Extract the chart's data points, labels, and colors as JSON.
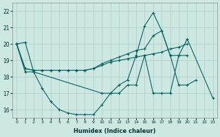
{
  "xlabel": "Humidex (Indice chaleur)",
  "background_color": "#cce8e0",
  "grid_color": "#aacccc",
  "line_color": "#006060",
  "xlim": [
    -0.5,
    23.5
  ],
  "ylim": [
    15.5,
    22.5
  ],
  "yticks": [
    16,
    17,
    18,
    19,
    20,
    21,
    22
  ],
  "xticks": [
    0,
    1,
    2,
    3,
    4,
    5,
    6,
    7,
    8,
    9,
    10,
    11,
    12,
    13,
    14,
    15,
    16,
    17,
    18,
    19,
    20,
    21,
    22,
    23
  ],
  "series": [
    {
      "x": [
        0,
        1,
        2,
        3,
        4,
        5,
        6,
        7,
        8,
        9,
        10,
        11,
        12,
        13,
        14,
        15,
        16,
        17,
        18,
        19,
        20,
        21
      ],
      "y": [
        20.0,
        20.1,
        18.3,
        17.3,
        16.5,
        16.0,
        15.8,
        15.7,
        15.7,
        15.7,
        16.3,
        17.0,
        17.5,
        17.8,
        19.3,
        21.1,
        21.9,
        20.8,
        19.3,
        17.5,
        17.5,
        17.8
      ]
    },
    {
      "x": [
        0,
        1,
        2,
        10,
        11,
        12,
        13,
        14,
        15,
        16,
        17,
        18,
        19,
        20,
        23
      ],
      "y": [
        20.0,
        18.3,
        18.3,
        17.0,
        17.0,
        17.0,
        17.5,
        17.5,
        19.3,
        17.0,
        17.0,
        17.0,
        19.3,
        20.3,
        16.7
      ]
    },
    {
      "x": [
        0,
        1,
        2,
        3,
        4,
        5,
        6,
        7,
        8,
        9,
        10,
        11,
        12,
        13,
        14,
        15,
        16,
        17,
        18,
        19,
        20
      ],
      "y": [
        20.0,
        18.5,
        18.4,
        18.4,
        18.4,
        18.4,
        18.4,
        18.4,
        18.4,
        18.5,
        18.8,
        19.0,
        19.2,
        19.4,
        19.6,
        19.7,
        20.5,
        20.8,
        19.3,
        19.3,
        19.3
      ]
    },
    {
      "x": [
        0,
        1,
        2,
        3,
        4,
        5,
        6,
        7,
        8,
        9,
        10,
        11,
        12,
        13,
        14,
        15,
        16,
        17,
        18,
        19,
        20
      ],
      "y": [
        20.0,
        18.5,
        18.4,
        18.4,
        18.4,
        18.4,
        18.4,
        18.4,
        18.4,
        18.5,
        18.7,
        18.9,
        19.0,
        19.1,
        19.2,
        19.3,
        19.4,
        19.5,
        19.7,
        19.8,
        20.0
      ]
    }
  ]
}
